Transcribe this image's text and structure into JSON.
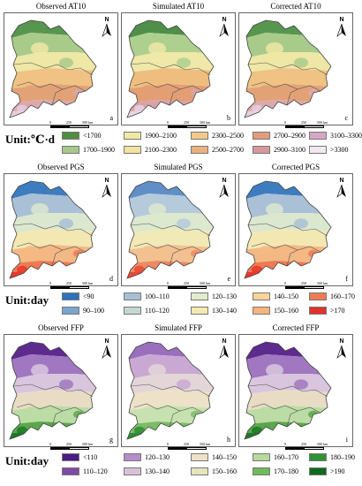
{
  "rows": [
    {
      "panels": [
        {
          "title": "Observed AT10",
          "letter": "a",
          "colors": [
            "#57964e",
            "#a9cb8a",
            "#eee7a5",
            "#f0c283",
            "#e3a276",
            "#dba9ac",
            "#e7cfe0"
          ]
        },
        {
          "title": "Simulated AT10",
          "letter": "b",
          "colors": [
            "#4f8f49",
            "#aed08f",
            "#efe8a8",
            "#efbe7f",
            "#e49e73",
            "#d9a3a8",
            "#e9d4e3"
          ]
        },
        {
          "title": "Corrected AT10",
          "letter": "c",
          "colors": [
            "#57964e",
            "#a9cb8a",
            "#eee7a5",
            "#f0c283",
            "#e3a276",
            "#dba9ac",
            "#e7cfe0"
          ]
        }
      ]
    },
    {
      "panels": [
        {
          "title": "Observed PGS",
          "letter": "d",
          "colors": [
            "#3e7cc0",
            "#a9c0d6",
            "#dbe7cf",
            "#f3e8b2",
            "#f4b884",
            "#f07a53",
            "#e8382c"
          ]
        },
        {
          "title": "Simulated PGS",
          "letter": "e",
          "colors": [
            "#5f8fc6",
            "#b5cadb",
            "#dde9cf",
            "#f1e9b6",
            "#f3c08f",
            "#ee8a62",
            "#e54a35"
          ]
        },
        {
          "title": "Corrected PGS",
          "letter": "f",
          "colors": [
            "#3e7cc0",
            "#a9c0d6",
            "#dbe7cf",
            "#f3e8b2",
            "#f4b884",
            "#f07a53",
            "#e8382c"
          ]
        }
      ]
    },
    {
      "panels": [
        {
          "title": "Observed FFP",
          "letter": "g",
          "colors": [
            "#5d2b8e",
            "#a077c0",
            "#d9c5de",
            "#e9dcc4",
            "#bcdca5",
            "#5aa84c",
            "#1b7a24"
          ]
        },
        {
          "title": "Simulated FFP",
          "letter": "h",
          "colors": [
            "#9a6fbd",
            "#c9a9d4",
            "#e4d6d8",
            "#ede2c8",
            "#c7e2b0",
            "#7cbc67",
            "#2f8c35"
          ]
        },
        {
          "title": "Corrected FFP",
          "letter": "i",
          "colors": [
            "#5d2b8e",
            "#a077c0",
            "#d9c5de",
            "#e9dcc4",
            "#bcdca5",
            "#5aa84c",
            "#1b7a24"
          ]
        }
      ]
    }
  ],
  "scale_ticks": [
    "0",
    "250",
    "500 km"
  ],
  "north_label": "N",
  "legends": [
    {
      "unit": "Unit:℃·d",
      "items": [
        {
          "label": "<1700",
          "color": "#4f8f3f"
        },
        {
          "label": "1700–1900",
          "color": "#a6c98a"
        },
        {
          "label": "1900–2100",
          "color": "#eeeaa6"
        },
        {
          "label": "2100–2300",
          "color": "#f4e2a0"
        },
        {
          "label": "2300–2500",
          "color": "#f2c98c"
        },
        {
          "label": "2500–2700",
          "color": "#eab17e"
        },
        {
          "label": "2700–2900",
          "color": "#e19c7c"
        },
        {
          "label": "2900–3100",
          "color": "#d7979c"
        },
        {
          "label": "3100–3300",
          "color": "#d6a7c4"
        },
        {
          "label": ">3300",
          "color": "#f3e8f1"
        }
      ]
    },
    {
      "unit": "Unit:day",
      "items": [
        {
          "label": "<90",
          "color": "#2c72bd"
        },
        {
          "label": "90–100",
          "color": "#7ba4cf"
        },
        {
          "label": "100–110",
          "color": "#a9c0d6"
        },
        {
          "label": "110–120",
          "color": "#c6d7d2"
        },
        {
          "label": "120–130",
          "color": "#e3ecc9"
        },
        {
          "label": "130–140",
          "color": "#f6e9b0"
        },
        {
          "label": "140–150",
          "color": "#f8d59a"
        },
        {
          "label": "150–160",
          "color": "#f6b47e"
        },
        {
          "label": "160–170",
          "color": "#f07b53"
        },
        {
          "label": ">170",
          "color": "#e3322a"
        }
      ]
    },
    {
      "unit": "Unit:day",
      "items": [
        {
          "label": "<110",
          "color": "#4b1b86"
        },
        {
          "label": "110–120",
          "color": "#7d4aa6"
        },
        {
          "label": "120–130",
          "color": "#b58dc8"
        },
        {
          "label": "130–140",
          "color": "#d8c2d8"
        },
        {
          "label": "140–150",
          "color": "#efe1c8"
        },
        {
          "label": "150–160",
          "color": "#e6e4bd"
        },
        {
          "label": "160–170",
          "color": "#b6d99c"
        },
        {
          "label": "170–180",
          "color": "#6fbb5a"
        },
        {
          "label": "180–190",
          "color": "#2d9234"
        },
        {
          "label": ">190",
          "color": "#0f6a1c"
        }
      ]
    }
  ]
}
